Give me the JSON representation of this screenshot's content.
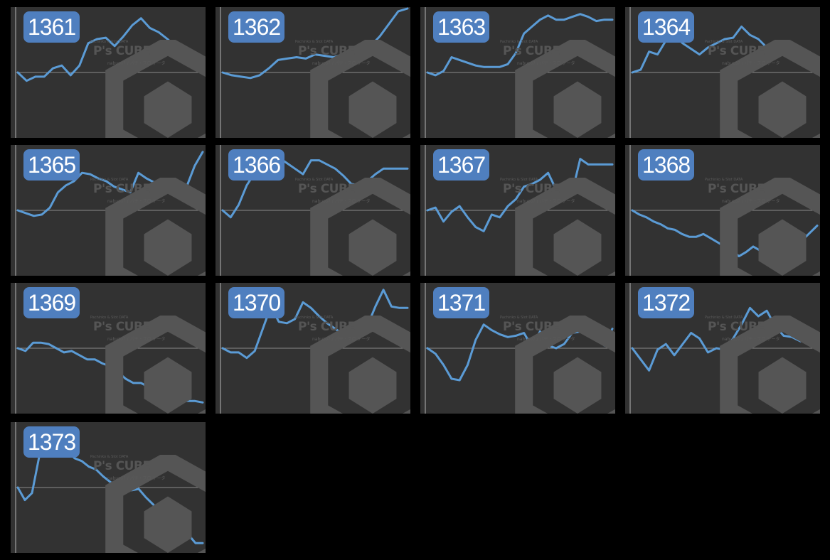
{
  "watermark": {
    "line1": "Pachinko & Slot DATA",
    "main": "P's CUBE",
    "sub": "nabuzo7 / パチ・スロ データ"
  },
  "colors": {
    "background": "#000000",
    "panel": "#323232",
    "line": "#5b9bd5",
    "badge": "#4f7fbf",
    "zero_line": "#8a8a8a"
  },
  "chart_data": [
    {
      "type": "line",
      "title": "1361",
      "x": [
        0,
        1,
        2,
        3,
        4,
        5,
        6,
        7,
        8,
        9,
        10,
        11,
        12,
        13,
        14,
        15,
        16,
        17,
        18,
        19,
        20,
        21
      ],
      "values": [
        0,
        -12,
        -6,
        -6,
        6,
        10,
        -4,
        10,
        42,
        48,
        50,
        38,
        52,
        68,
        78,
        64,
        58,
        48,
        36,
        30,
        22,
        22
      ],
      "ylim": [
        -92,
        92
      ]
    },
    {
      "type": "line",
      "title": "1362",
      "x": [
        0,
        1,
        2,
        3,
        4,
        5,
        6,
        7,
        8,
        9,
        10,
        11,
        12,
        13,
        14,
        15,
        16,
        17,
        18,
        19,
        20
      ],
      "values": [
        0,
        -4,
        -6,
        -8,
        -4,
        6,
        18,
        20,
        22,
        20,
        26,
        24,
        22,
        26,
        22,
        24,
        38,
        52,
        70,
        88,
        92
      ],
      "ylim": [
        -92,
        92
      ]
    },
    {
      "type": "line",
      "title": "1363",
      "x": [
        0,
        1,
        2,
        3,
        4,
        5,
        6,
        7,
        8,
        9,
        10,
        11,
        12,
        13,
        14,
        15,
        16,
        17,
        18,
        19,
        20,
        21,
        22,
        23
      ],
      "values": [
        0,
        -4,
        2,
        22,
        18,
        14,
        10,
        8,
        8,
        8,
        12,
        28,
        56,
        66,
        76,
        82,
        76,
        76,
        80,
        84,
        80,
        74,
        76,
        76
      ],
      "ylim": [
        -92,
        92
      ]
    },
    {
      "type": "line",
      "title": "1364",
      "x": [
        0,
        1,
        2,
        3,
        4,
        5,
        6,
        7,
        8,
        9,
        10,
        11,
        12,
        13,
        14,
        15,
        16,
        17,
        18,
        19,
        20,
        21,
        22
      ],
      "values": [
        0,
        4,
        30,
        26,
        46,
        54,
        42,
        34,
        26,
        36,
        42,
        48,
        50,
        66,
        54,
        48,
        36,
        38,
        38,
        26,
        18,
        16,
        16
      ],
      "ylim": [
        -92,
        92
      ]
    },
    {
      "type": "line",
      "title": "1365",
      "x": [
        0,
        1,
        2,
        3,
        4,
        5,
        6,
        7,
        8,
        9,
        10,
        11,
        12,
        13,
        14,
        15,
        16,
        17,
        18,
        19,
        20,
        21,
        22,
        23
      ],
      "values": [
        0,
        -4,
        -8,
        -6,
        4,
        26,
        36,
        42,
        54,
        52,
        46,
        42,
        34,
        30,
        26,
        54,
        46,
        40,
        34,
        30,
        24,
        34,
        64,
        84
      ],
      "ylim": [
        -92,
        92
      ]
    },
    {
      "type": "line",
      "title": "1366",
      "x": [
        0,
        1,
        2,
        3,
        4,
        5,
        6,
        7,
        8,
        9,
        10,
        11,
        12,
        13,
        14,
        15,
        16,
        17,
        18,
        19,
        20,
        21,
        22,
        23
      ],
      "values": [
        0,
        -10,
        8,
        36,
        54,
        64,
        68,
        76,
        68,
        60,
        52,
        72,
        72,
        66,
        60,
        50,
        38,
        36,
        42,
        52,
        60,
        60,
        60,
        60
      ],
      "ylim": [
        -92,
        92
      ]
    },
    {
      "type": "line",
      "title": "1367",
      "x": [
        0,
        1,
        2,
        3,
        4,
        5,
        6,
        7,
        8,
        9,
        10,
        11,
        12,
        13,
        14,
        15,
        16,
        17,
        18,
        19,
        20,
        21,
        22,
        23
      ],
      "values": [
        0,
        4,
        -16,
        -2,
        6,
        -10,
        -24,
        -30,
        -6,
        -10,
        6,
        16,
        34,
        38,
        44,
        54,
        30,
        28,
        26,
        74,
        66,
        66,
        66,
        66
      ],
      "ylim": [
        -92,
        92
      ]
    },
    {
      "type": "line",
      "title": "1368",
      "x": [
        0,
        1,
        2,
        3,
        4,
        5,
        6,
        7,
        8,
        9,
        10,
        11,
        12,
        13,
        14,
        15,
        16,
        17,
        18,
        19,
        20,
        21,
        22,
        23,
        24,
        25,
        26
      ],
      "values": [
        0,
        -6,
        -10,
        -16,
        -20,
        -26,
        -28,
        -34,
        -38,
        -38,
        -34,
        -40,
        -46,
        -52,
        -58,
        -66,
        -60,
        -52,
        -58,
        -64,
        -70,
        -62,
        -60,
        -62,
        -42,
        -32,
        -22
      ],
      "ylim": [
        -92,
        92
      ]
    },
    {
      "type": "line",
      "title": "1369",
      "x": [
        0,
        1,
        2,
        3,
        4,
        5,
        6,
        7,
        8,
        9,
        10,
        11,
        12,
        13,
        14,
        15,
        16,
        17,
        18,
        19,
        20,
        21,
        22,
        23,
        24
      ],
      "values": [
        0,
        -4,
        8,
        8,
        6,
        0,
        -6,
        -4,
        -10,
        -16,
        -16,
        -22,
        -26,
        -34,
        -44,
        -50,
        -50,
        -56,
        -56,
        -62,
        -70,
        -76,
        -76,
        -76,
        -78
      ],
      "ylim": [
        -92,
        92
      ]
    },
    {
      "type": "line",
      "title": "1370",
      "x": [
        0,
        1,
        2,
        3,
        4,
        5,
        6,
        7,
        8,
        9,
        10,
        11,
        12,
        13,
        14,
        15,
        16,
        17,
        18,
        19,
        20,
        21,
        22,
        23
      ],
      "values": [
        0,
        -6,
        -6,
        -14,
        -4,
        28,
        60,
        38,
        36,
        42,
        66,
        58,
        46,
        36,
        28,
        20,
        16,
        18,
        32,
        60,
        84,
        60,
        58,
        58
      ],
      "ylim": [
        -92,
        92
      ]
    },
    {
      "type": "line",
      "title": "1371",
      "x": [
        0,
        1,
        2,
        3,
        4,
        5,
        6,
        7,
        8,
        9,
        10,
        11,
        12,
        13,
        14,
        15,
        16,
        17,
        18,
        19,
        20,
        21,
        22,
        23
      ],
      "values": [
        0,
        -8,
        -24,
        -44,
        -46,
        -24,
        12,
        34,
        26,
        20,
        16,
        18,
        22,
        2,
        24,
        4,
        0,
        6,
        22,
        24,
        22,
        18,
        4,
        28
      ],
      "ylim": [
        -92,
        92
      ]
    },
    {
      "type": "line",
      "title": "1372",
      "x": [
        0,
        1,
        2,
        3,
        4,
        5,
        6,
        7,
        8,
        9,
        10,
        11,
        12,
        13,
        14,
        15,
        16,
        17,
        18,
        19,
        20,
        21,
        22
      ],
      "values": [
        0,
        -16,
        -32,
        -2,
        6,
        -10,
        6,
        22,
        14,
        -6,
        0,
        -2,
        14,
        34,
        58,
        46,
        54,
        32,
        18,
        16,
        10,
        20,
        20
      ],
      "ylim": [
        -92,
        92
      ]
    },
    {
      "type": "line",
      "title": "1373",
      "x": [
        0,
        1,
        2,
        3,
        4,
        5,
        6,
        7,
        8,
        9,
        10,
        11,
        12,
        13,
        14,
        15,
        16,
        17,
        18,
        19,
        20,
        21,
        22,
        23,
        24,
        25,
        26
      ],
      "values": [
        0,
        -18,
        -8,
        44,
        82,
        76,
        66,
        52,
        42,
        38,
        30,
        26,
        16,
        8,
        0,
        8,
        -4,
        -2,
        -14,
        -24,
        -34,
        -48,
        -58,
        -62,
        -68,
        -80,
        -80
      ],
      "ylim": [
        -92,
        92
      ]
    }
  ]
}
